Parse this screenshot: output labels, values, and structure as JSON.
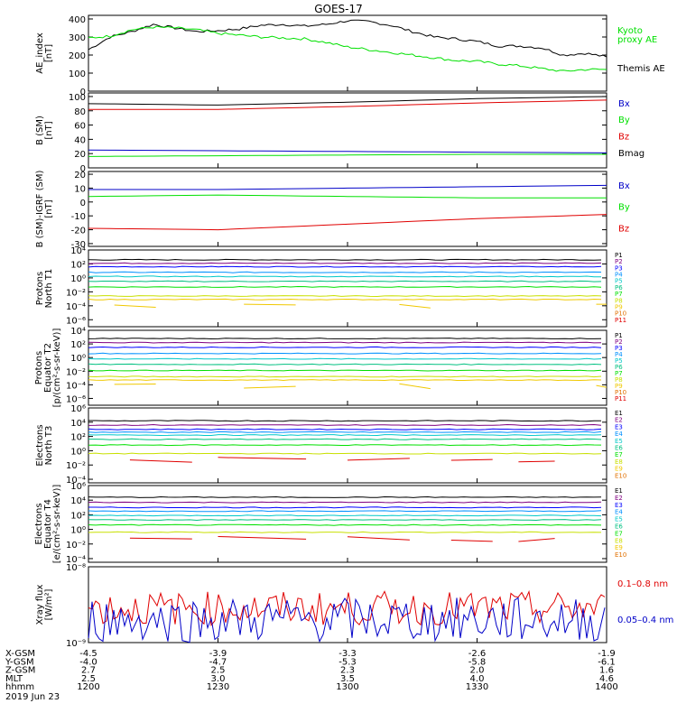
{
  "title": "GOES-17",
  "colors": {
    "black": "#000000",
    "green": "#00e000",
    "red": "#e00000",
    "blue": "#0000c8",
    "p_colors": [
      "#000000",
      "#800080",
      "#0000ff",
      "#0090ff",
      "#00c8c8",
      "#00c080",
      "#00e000",
      "#c8e000",
      "#f0c800",
      "#e07000",
      "#e00000"
    ]
  },
  "chart_data": [
    {
      "type": "line",
      "ylabel": [
        "AE_index",
        "[nT]"
      ],
      "yticks": [
        "400",
        "300",
        "200",
        "100",
        "0"
      ],
      "ylim": [
        0,
        420
      ],
      "legend": [
        {
          "label": "Kyoto",
          "color": "#00e000"
        },
        {
          "label": "proxy AE",
          "color": "#00e000"
        },
        {
          "label": "Themis AE",
          "color": "#000000"
        }
      ],
      "series": [
        {
          "color": "#000000",
          "x": [
            1200,
            1205,
            1210,
            1215,
            1220,
            1225,
            1230,
            1235,
            1240,
            1245,
            1250,
            1255,
            1300,
            1305,
            1310,
            1315,
            1320,
            1325,
            1330,
            1335,
            1340,
            1345,
            1350,
            1355,
            1400
          ],
          "y": [
            230,
            300,
            330,
            370,
            350,
            330,
            335,
            345,
            365,
            370,
            360,
            370,
            390,
            385,
            365,
            330,
            300,
            290,
            275,
            250,
            250,
            240,
            200,
            210,
            190
          ]
        },
        {
          "color": "#00e000",
          "x": [
            1200,
            1205,
            1210,
            1215,
            1220,
            1225,
            1230,
            1235,
            1240,
            1245,
            1250,
            1255,
            1300,
            1305,
            1310,
            1315,
            1320,
            1325,
            1330,
            1335,
            1340,
            1345,
            1350,
            1355,
            1400
          ],
          "y": [
            295,
            305,
            340,
            355,
            350,
            340,
            320,
            310,
            300,
            295,
            290,
            270,
            245,
            230,
            215,
            200,
            185,
            170,
            165,
            150,
            140,
            125,
            110,
            120,
            120
          ]
        }
      ]
    },
    {
      "type": "line",
      "ylabel": [
        "B (SM)",
        "[nT]"
      ],
      "yticks": [
        "100",
        "80",
        "60",
        "40",
        "20",
        "0"
      ],
      "ylim": [
        0,
        105
      ],
      "legend": [
        {
          "label": "Bx",
          "color": "#0000c8"
        },
        {
          "label": "By",
          "color": "#00e000"
        },
        {
          "label": "Bz",
          "color": "#e00000"
        },
        {
          "label": "Bmag",
          "color": "#000000"
        }
      ],
      "series": [
        {
          "color": "#000000",
          "x": [
            1200,
            1230,
            1300,
            1330,
            1400
          ],
          "y": [
            90,
            88,
            92,
            97,
            100
          ]
        },
        {
          "color": "#e00000",
          "x": [
            1200,
            1230,
            1300,
            1330,
            1400
          ],
          "y": [
            82,
            82,
            86,
            91,
            95
          ]
        },
        {
          "color": "#0000c8",
          "x": [
            1200,
            1230,
            1300,
            1330,
            1400
          ],
          "y": [
            25,
            24,
            23,
            22,
            21
          ]
        },
        {
          "color": "#00e000",
          "x": [
            1200,
            1230,
            1300,
            1330,
            1400
          ],
          "y": [
            16,
            17,
            18,
            19,
            19
          ]
        }
      ]
    },
    {
      "type": "line",
      "ylabel": [
        "B (SM)-IGRF (SM)",
        "[nT]"
      ],
      "yticks": [
        "20",
        "10",
        "0",
        "-10",
        "-20",
        "-30"
      ],
      "ylim": [
        -32,
        22
      ],
      "legend": [
        {
          "label": "Bx",
          "color": "#0000c8"
        },
        {
          "label": "By",
          "color": "#00e000"
        },
        {
          "label": "Bz",
          "color": "#e00000"
        }
      ],
      "series": [
        {
          "color": "#0000c8",
          "x": [
            1200,
            1230,
            1300,
            1330,
            1400
          ],
          "y": [
            9,
            9,
            10,
            11,
            12
          ]
        },
        {
          "color": "#00e000",
          "x": [
            1200,
            1230,
            1300,
            1330,
            1400
          ],
          "y": [
            4,
            5,
            4,
            3,
            3
          ]
        },
        {
          "color": "#e00000",
          "x": [
            1200,
            1230,
            1300,
            1330,
            1400
          ],
          "y": [
            -19,
            -20,
            -16,
            -12,
            -9
          ]
        }
      ]
    },
    {
      "type": "line",
      "log": true,
      "ylabel": [
        "Protons",
        "North T1"
      ],
      "yticks": [
        "10⁴",
        "10²",
        "10⁰",
        "10⁻²",
        "10⁻⁴",
        "10⁻⁶"
      ],
      "ylim": [
        -7,
        4
      ],
      "legend": [
        "P1",
        "P2",
        "P3",
        "P4",
        "P5",
        "P6",
        "P7",
        "P8",
        "P9",
        "P10",
        "P11"
      ],
      "levels": [
        2.6,
        2.1,
        1.6,
        0.8,
        0.2,
        -0.5,
        -1.3,
        -2.6,
        -3.1
      ]
    },
    {
      "type": "line",
      "log": true,
      "ylabel": [
        "Protons",
        "Equator T2",
        "[p/(cm²-s-sr-keV)]"
      ],
      "yticks": [
        "10⁴",
        "10²",
        "10⁰",
        "10⁻²",
        "10⁻⁴",
        "10⁻⁶"
      ],
      "ylim": [
        -7,
        4
      ],
      "legend": [
        "P1",
        "P2",
        "P3",
        "P4",
        "P5",
        "P6",
        "P7",
        "P8",
        "P9",
        "P10",
        "P11"
      ],
      "levels": [
        2.8,
        2.2,
        1.5,
        0.6,
        -0.2,
        -1.0,
        -1.9,
        -2.8,
        -3.3
      ]
    },
    {
      "type": "line",
      "log": true,
      "ylabel": [
        "Electrons",
        "North T3"
      ],
      "yticks": [
        "10⁶",
        "10⁴",
        "10²",
        "10⁰",
        "10⁻²",
        "10⁻⁴"
      ],
      "ylim": [
        -4.5,
        6
      ],
      "legend": [
        "E1",
        "E2",
        "E3",
        "E4",
        "E5",
        "E6",
        "E7",
        "E8",
        "E9",
        "E10"
      ],
      "levels": [
        4.2,
        3.6,
        3.0,
        2.6,
        2.2,
        1.6,
        0.8,
        -0.4
      ]
    },
    {
      "type": "line",
      "log": true,
      "ylabel": [
        "Electrons",
        "Equator T4",
        "[e/(cm²-s-sr-keV)]"
      ],
      "yticks": [
        "10⁶",
        "10⁴",
        "10²",
        "10⁰",
        "10⁻²",
        "10⁻⁴"
      ],
      "ylim": [
        -4.5,
        6
      ],
      "legend": [
        "E1",
        "E2",
        "E3",
        "E4",
        "E5",
        "E6",
        "E7",
        "E8",
        "E9",
        "E10"
      ],
      "levels": [
        4.4,
        3.7,
        3.0,
        2.5,
        1.9,
        1.3,
        0.6,
        -0.4
      ]
    },
    {
      "type": "line",
      "log": true,
      "ylabel": [
        "Xray flux",
        "[W/m²]"
      ],
      "yticks": [
        "10⁻⁸",
        "10⁻⁹"
      ],
      "ylim": [
        -9,
        -8
      ],
      "legend": [
        {
          "label": "0.1–0.8 nm",
          "color": "#e00000"
        },
        {
          "label": "0.05–0.4 nm",
          "color": "#0000c8"
        }
      ]
    }
  ],
  "xaxis": {
    "ticks": [
      1200,
      1230,
      1300,
      1330,
      1400
    ],
    "rows": [
      {
        "name": "X-GSM",
        "values": [
          "-4.5",
          "-3.9",
          "-3.3",
          "-2.6",
          "-1.9"
        ]
      },
      {
        "name": "Y-GSM",
        "values": [
          "-4.0",
          "-4.7",
          "-5.3",
          "-5.8",
          "-6.1"
        ]
      },
      {
        "name": "Z-GSM",
        "values": [
          "2.7",
          "2.5",
          "2.3",
          "2.0",
          "1.6"
        ]
      },
      {
        "name": "MLT",
        "values": [
          "2.5",
          "3.0",
          "3.5",
          "4.0",
          "4.6"
        ]
      },
      {
        "name": "hhmm",
        "values": [
          "1200",
          "1230",
          "1300",
          "1330",
          "1400"
        ]
      }
    ],
    "date": "2019 Jun 23"
  }
}
